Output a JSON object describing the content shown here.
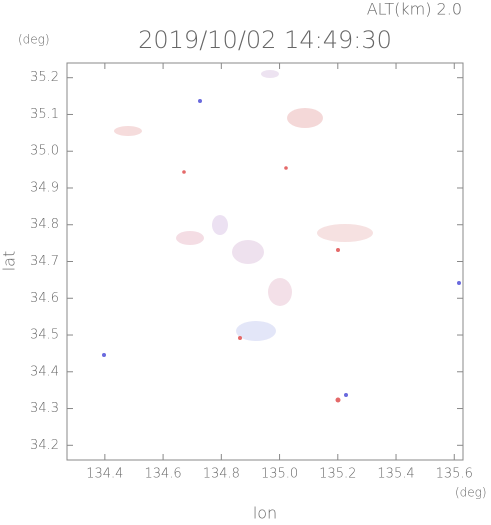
{
  "chart_data": {
    "type": "map",
    "title": "2019/10/02 14:49:30",
    "subtitle": "ALT(km) 2.0",
    "x_label": "lon",
    "y_label": "lat",
    "x_unit": "(deg)",
    "y_unit": "(deg)",
    "xlim": [
      134.27,
      135.63
    ],
    "ylim": [
      34.16,
      35.24
    ],
    "xticks": [
      134.4,
      134.6,
      134.8,
      {
        "value": 135,
        "label": "135.0"
      },
      135.2,
      135.4,
      135.6
    ],
    "yticks": [
      34.2,
      34.3,
      34.4,
      34.5,
      34.6,
      34.7,
      34.8,
      34.9,
      {
        "value": 35,
        "label": "35.0"
      },
      35.1,
      35.2
    ],
    "axis_color": "#888888"
  }
}
